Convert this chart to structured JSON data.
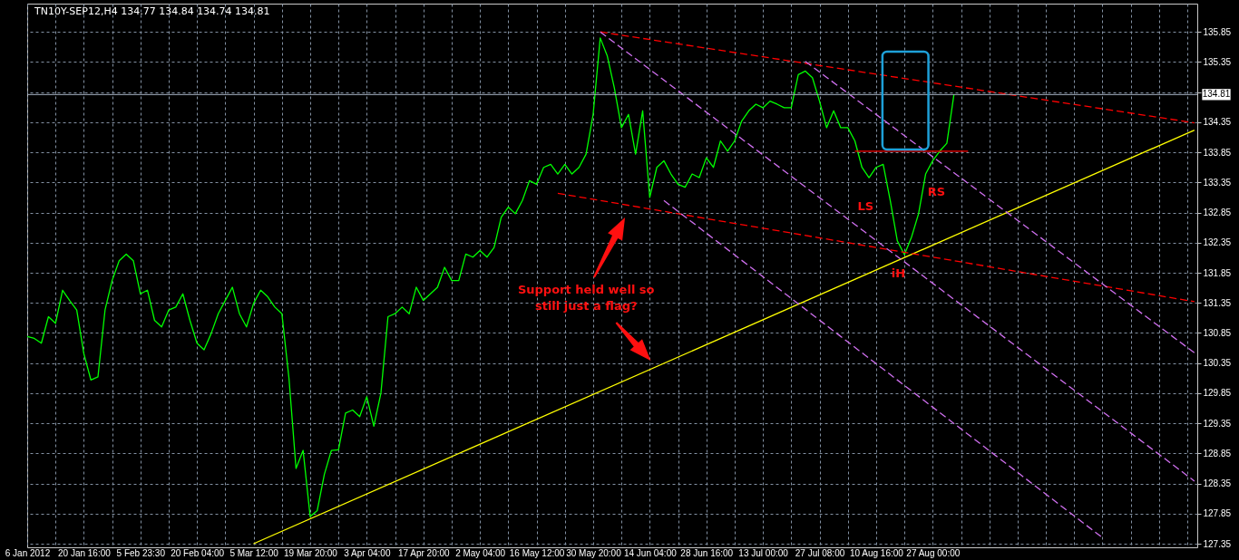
{
  "chart_data": {
    "type": "line",
    "title": "TN10Y-SEP12,H4  134.77 134.84 134.74 134.81",
    "categories": [
      "6 Jan 2012",
      null,
      null,
      null,
      null,
      null,
      null,
      null,
      "20 Jan 16:00",
      null,
      null,
      null,
      null,
      null,
      null,
      null,
      "5 Feb 23:30",
      null,
      null,
      null,
      null,
      null,
      null,
      null,
      "20 Feb 04:00",
      null,
      null,
      null,
      null,
      null,
      null,
      null,
      "5 Mar 12:00",
      null,
      null,
      null,
      null,
      null,
      null,
      null,
      "19 Mar 20:00",
      null,
      null,
      null,
      null,
      null,
      null,
      null,
      "3 Apr 04:00",
      null,
      null,
      null,
      null,
      null,
      null,
      null,
      "17 Apr 20:00",
      null,
      null,
      null,
      null,
      null,
      null,
      null,
      "2 May 04:00",
      null,
      null,
      null,
      null,
      null,
      null,
      null,
      "16 May 12:00",
      null,
      null,
      null,
      null,
      null,
      null,
      null,
      "30 May 20:00",
      null,
      null,
      null,
      null,
      null,
      null,
      null,
      "14 Jun 04:00",
      null,
      null,
      null,
      null,
      null,
      null,
      null,
      "28 Jun 16:00",
      null,
      null,
      null,
      null,
      null,
      null,
      null,
      "13 Jul 00:00",
      null,
      null,
      null,
      null,
      null,
      null,
      null,
      "27 Jul 08:00",
      null,
      null,
      null,
      null,
      null,
      null,
      null,
      "10 Aug 16:00",
      null,
      null,
      null,
      null,
      null,
      null,
      null,
      "27 Aug 00:00",
      null,
      null,
      null,
      null,
      null,
      null,
      null,
      null,
      null,
      null,
      null,
      null,
      null,
      null,
      null,
      null,
      null,
      null,
      null,
      null,
      null,
      null,
      null,
      null,
      null,
      null,
      null,
      null,
      null,
      null,
      null,
      null,
      null,
      null,
      null,
      null,
      null
    ],
    "series": [
      {
        "color": "#00ff00",
        "values": [
          130.79,
          130.76,
          130.68,
          131.12,
          131.01,
          131.56,
          131.39,
          131.23,
          130.51,
          130.07,
          130.12,
          131.23,
          131.72,
          132.05,
          132.16,
          132.05,
          131.5,
          131.56,
          131.06,
          130.95,
          131.23,
          131.28,
          131.5,
          131.06,
          130.68,
          130.57,
          130.84,
          131.17,
          131.39,
          131.61,
          131.17,
          130.95,
          131.34,
          131.56,
          131.45,
          131.28,
          131.17,
          130.1,
          128.6,
          128.9,
          127.8,
          127.9,
          128.5,
          128.9,
          128.91,
          129.52,
          129.57,
          129.46,
          129.79,
          129.3,
          129.85,
          131.12,
          131.17,
          131.28,
          131.17,
          131.61,
          131.39,
          131.5,
          131.61,
          131.94,
          131.72,
          131.72,
          132.16,
          132.11,
          132.22,
          132.11,
          132.27,
          132.77,
          132.94,
          132.83,
          133.05,
          133.38,
          133.32,
          133.6,
          133.65,
          133.49,
          133.65,
          133.49,
          133.6,
          133.82,
          134.48,
          135.75,
          135.45,
          134.92,
          134.26,
          134.48,
          133.82,
          134.54,
          133.1,
          133.6,
          133.71,
          133.49,
          133.32,
          133.27,
          133.49,
          133.43,
          133.76,
          133.6,
          134.04,
          133.87,
          134.04,
          134.37,
          134.54,
          134.65,
          134.59,
          134.7,
          134.65,
          134.59,
          134.59,
          135.14,
          135.2,
          135.09,
          134.7,
          134.26,
          134.54,
          134.26,
          134.26,
          134.04,
          133.6,
          133.43,
          133.6,
          133.65,
          133.05,
          132.38,
          132.15,
          132.44,
          132.83,
          133.49,
          133.71,
          133.87,
          134.0,
          134.81,
          null,
          null,
          null,
          null,
          null,
          null,
          null,
          null,
          null,
          null,
          null,
          null,
          null,
          null,
          null,
          null,
          null,
          null,
          null,
          null,
          null,
          null,
          null,
          null,
          null,
          null,
          null,
          null,
          null,
          null,
          null,
          null,
          null,
          null
        ]
      },
      {
        "color": "#ffff00",
        "line_style": "solid",
        "values": [
          null,
          null,
          null,
          null,
          null,
          null,
          null,
          null,
          null,
          null,
          null,
          null,
          null,
          null,
          null,
          null,
          null,
          null,
          null,
          null,
          null,
          null,
          null,
          null,
          null,
          null,
          null,
          null,
          null,
          null,
          null,
          null,
          127.35,
          null,
          null,
          null,
          null,
          null,
          null,
          null,
          null,
          null,
          null,
          null,
          null,
          null,
          null,
          null,
          null,
          null,
          null,
          null,
          null,
          null,
          null,
          null,
          null,
          null,
          null,
          null,
          null,
          null,
          null,
          null,
          null,
          null,
          null,
          null,
          null,
          null,
          null,
          null,
          null,
          null,
          null,
          null,
          null,
          null,
          null,
          null,
          null,
          null,
          null,
          null,
          null,
          null,
          null,
          null,
          null,
          null,
          null,
          null,
          null,
          null,
          null,
          null,
          null,
          null,
          null,
          null,
          null,
          null,
          null,
          null,
          null,
          null,
          null,
          null,
          null,
          null,
          null,
          null,
          null,
          null,
          null,
          null,
          null,
          null,
          null,
          null,
          null,
          null,
          null,
          null,
          null,
          null,
          null,
          null,
          null,
          null,
          null,
          null,
          null,
          null,
          null,
          null,
          null,
          null,
          null,
          null,
          null,
          null,
          null,
          null,
          null,
          null,
          null,
          null,
          null,
          null,
          null,
          null,
          null,
          null,
          null,
          null,
          null,
          null,
          null,
          null,
          null,
          null,
          null,
          null,
          null,
          134.22
        ]
      },
      {
        "color": "#ff0000",
        "line_style": "dashed",
        "values": [
          null,
          null,
          null,
          null,
          null,
          null,
          null,
          null,
          null,
          null,
          null,
          null,
          null,
          null,
          null,
          null,
          null,
          null,
          null,
          null,
          null,
          null,
          null,
          null,
          null,
          null,
          null,
          null,
          null,
          null,
          null,
          null,
          null,
          null,
          null,
          null,
          null,
          null,
          null,
          null,
          null,
          null,
          null,
          null,
          null,
          null,
          null,
          null,
          null,
          null,
          null,
          null,
          null,
          null,
          null,
          null,
          null,
          null,
          null,
          null,
          null,
          null,
          null,
          null,
          null,
          null,
          null,
          null,
          null,
          null,
          null,
          null,
          null,
          null,
          null,
          null,
          null,
          null,
          null,
          null,
          null,
          135.85,
          null,
          null,
          null,
          null,
          null,
          null,
          null,
          null,
          null,
          null,
          null,
          null,
          null,
          null,
          null,
          null,
          null,
          null,
          null,
          null,
          null,
          null,
          null,
          null,
          null,
          null,
          null,
          null,
          null,
          null,
          null,
          null,
          null,
          null,
          null,
          null,
          null,
          null,
          null,
          null,
          null,
          null,
          null,
          null,
          null,
          null,
          null,
          null,
          null,
          null,
          null,
          null,
          null,
          null,
          null,
          null,
          null,
          null,
          null,
          null,
          null,
          null,
          null,
          null,
          null,
          null,
          null,
          null,
          null,
          null,
          null,
          null,
          null,
          null,
          null,
          null,
          null,
          null,
          null,
          null,
          null,
          null,
          null,
          134.34
        ]
      },
      {
        "color": "#ff0000",
        "line_style": "dashed",
        "values": [
          null,
          null,
          null,
          null,
          null,
          null,
          null,
          null,
          null,
          null,
          null,
          null,
          null,
          null,
          null,
          null,
          null,
          null,
          null,
          null,
          null,
          null,
          null,
          null,
          null,
          null,
          null,
          null,
          null,
          null,
          null,
          null,
          null,
          null,
          null,
          null,
          null,
          null,
          null,
          null,
          null,
          null,
          null,
          null,
          null,
          null,
          null,
          null,
          null,
          null,
          null,
          null,
          null,
          null,
          null,
          null,
          null,
          null,
          null,
          null,
          null,
          null,
          null,
          null,
          null,
          null,
          null,
          null,
          null,
          null,
          null,
          null,
          null,
          null,
          null,
          133.17,
          null,
          null,
          null,
          null,
          null,
          null,
          null,
          null,
          null,
          null,
          null,
          null,
          null,
          null,
          null,
          null,
          null,
          null,
          null,
          null,
          null,
          null,
          null,
          null,
          null,
          null,
          null,
          null,
          null,
          null,
          null,
          null,
          null,
          null,
          null,
          null,
          null,
          null,
          null,
          null,
          null,
          null,
          null,
          null,
          null,
          null,
          null,
          null,
          null,
          null,
          null,
          null,
          null,
          null,
          null,
          null,
          null,
          null,
          null,
          null,
          null,
          null,
          null,
          null,
          null,
          null,
          null,
          null,
          null,
          null,
          null,
          null,
          null,
          null,
          null,
          null,
          null,
          null,
          null,
          null,
          null,
          null,
          null,
          null,
          null,
          null,
          null,
          null,
          null,
          131.37
        ]
      },
      {
        "color": "#ff0000",
        "line_style": "solid",
        "values": [
          null,
          null,
          null,
          null,
          null,
          null,
          null,
          null,
          null,
          null,
          null,
          null,
          null,
          null,
          null,
          null,
          null,
          null,
          null,
          null,
          null,
          null,
          null,
          null,
          null,
          null,
          null,
          null,
          null,
          null,
          null,
          null,
          null,
          null,
          null,
          null,
          null,
          null,
          null,
          null,
          null,
          null,
          null,
          null,
          null,
          null,
          null,
          null,
          null,
          null,
          null,
          null,
          null,
          null,
          null,
          null,
          null,
          null,
          null,
          null,
          null,
          null,
          null,
          null,
          null,
          null,
          null,
          null,
          null,
          null,
          null,
          null,
          null,
          null,
          null,
          null,
          null,
          null,
          null,
          null,
          null,
          null,
          null,
          null,
          null,
          null,
          null,
          null,
          null,
          null,
          null,
          null,
          null,
          null,
          null,
          null,
          null,
          null,
          null,
          null,
          null,
          null,
          null,
          null,
          null,
          null,
          null,
          null,
          null,
          null,
          null,
          null,
          null,
          null,
          null,
          null,
          null,
          133.87,
          null,
          null,
          null,
          null,
          null,
          null,
          null,
          null,
          null,
          null,
          null,
          null,
          null,
          null,
          null,
          133.87,
          null,
          null,
          null,
          null,
          null,
          null,
          null,
          null,
          null,
          null,
          null,
          null,
          null,
          null,
          null,
          null,
          null,
          null,
          null,
          null,
          null,
          null,
          null,
          null,
          null,
          null,
          null,
          null,
          null,
          null,
          null,
          null
        ]
      },
      {
        "color": "#d070f0",
        "line_style": "dashed",
        "values": [
          null,
          null,
          null,
          null,
          null,
          null,
          null,
          null,
          null,
          null,
          null,
          null,
          null,
          null,
          null,
          null,
          null,
          null,
          null,
          null,
          null,
          null,
          null,
          null,
          null,
          null,
          null,
          null,
          null,
          null,
          null,
          null,
          null,
          null,
          null,
          null,
          null,
          null,
          null,
          null,
          null,
          null,
          null,
          null,
          null,
          null,
          null,
          null,
          null,
          null,
          null,
          null,
          null,
          null,
          null,
          null,
          null,
          null,
          null,
          null,
          null,
          null,
          null,
          null,
          null,
          null,
          null,
          null,
          null,
          null,
          null,
          null,
          null,
          null,
          null,
          null,
          null,
          null,
          null,
          null,
          null,
          135.85,
          null,
          null,
          null,
          null,
          null,
          null,
          null,
          null,
          null,
          null,
          null,
          null,
          null,
          null,
          null,
          null,
          null,
          null,
          null,
          null,
          null,
          null,
          null,
          null,
          null,
          null,
          null,
          null,
          null,
          null,
          null,
          null,
          null,
          null,
          null,
          null,
          null,
          null,
          null,
          null,
          null,
          null,
          null,
          null,
          null,
          null,
          null,
          null,
          null,
          null,
          null,
          null,
          null,
          null,
          null,
          null,
          null,
          null,
          null,
          null,
          null,
          null,
          null,
          null,
          null,
          null,
          null,
          null,
          null,
          null,
          null,
          null,
          null,
          null,
          null,
          null,
          null,
          null,
          null,
          null,
          null,
          null,
          null,
          128.39
        ]
      },
      {
        "color": "#d070f0",
        "line_style": "dashed",
        "values": [
          null,
          null,
          null,
          null,
          null,
          null,
          null,
          null,
          null,
          null,
          null,
          null,
          null,
          null,
          null,
          null,
          null,
          null,
          null,
          null,
          null,
          null,
          null,
          null,
          null,
          null,
          null,
          null,
          null,
          null,
          null,
          null,
          null,
          null,
          null,
          null,
          null,
          null,
          null,
          null,
          null,
          null,
          null,
          null,
          null,
          null,
          null,
          null,
          null,
          null,
          null,
          null,
          null,
          null,
          null,
          null,
          null,
          null,
          null,
          null,
          null,
          null,
          null,
          null,
          null,
          null,
          null,
          null,
          null,
          null,
          null,
          null,
          null,
          null,
          null,
          null,
          null,
          null,
          null,
          null,
          null,
          null,
          null,
          null,
          null,
          null,
          null,
          null,
          null,
          null,
          null,
          null,
          null,
          null,
          null,
          null,
          null,
          null,
          null,
          null,
          null,
          null,
          null,
          null,
          null,
          null,
          null,
          null,
          null,
          null,
          135.36,
          null,
          null,
          null,
          null,
          null,
          null,
          null,
          null,
          null,
          null,
          null,
          null,
          null,
          null,
          null,
          null,
          null,
          null,
          null,
          null,
          null,
          null,
          null,
          null,
          null,
          null,
          null,
          null,
          null,
          null,
          null,
          null,
          null,
          null,
          null,
          null,
          null,
          null,
          null,
          null,
          null,
          null,
          null,
          null,
          null,
          null,
          null,
          null,
          null,
          null,
          null,
          null,
          null,
          null,
          130.52
        ]
      },
      {
        "color": "#d070f0",
        "line_style": "dashed",
        "values": [
          null,
          null,
          null,
          null,
          null,
          null,
          null,
          null,
          null,
          null,
          null,
          null,
          null,
          null,
          null,
          null,
          null,
          null,
          null,
          null,
          null,
          null,
          null,
          null,
          null,
          null,
          null,
          null,
          null,
          null,
          null,
          null,
          null,
          null,
          null,
          null,
          null,
          null,
          null,
          null,
          null,
          null,
          null,
          null,
          null,
          null,
          null,
          null,
          null,
          null,
          null,
          null,
          null,
          null,
          null,
          null,
          null,
          null,
          null,
          null,
          null,
          null,
          null,
          null,
          null,
          null,
          null,
          null,
          null,
          null,
          null,
          null,
          null,
          null,
          null,
          null,
          null,
          null,
          null,
          null,
          null,
          null,
          null,
          null,
          null,
          null,
          null,
          null,
          null,
          null,
          133.05,
          null,
          null,
          null,
          null,
          null,
          null,
          null,
          null,
          null,
          null,
          null,
          null,
          null,
          null,
          null,
          null,
          null,
          null,
          null,
          null,
          null,
          null,
          null,
          null,
          null,
          null,
          null,
          null,
          null,
          null,
          null,
          null,
          null,
          null,
          null,
          null,
          null,
          null,
          null,
          null,
          null,
          null,
          null,
          null,
          null,
          null,
          null,
          null,
          null,
          null,
          null,
          null,
          null,
          null,
          null,
          null,
          null,
          null,
          null,
          null,
          null,
          127.45,
          null,
          null,
          null,
          null,
          null,
          null,
          null,
          null,
          null,
          null,
          null,
          null,
          null
        ]
      }
    ],
    "ylim": [
      127.29,
      136.32
    ],
    "yticks": [
      127.35,
      127.85,
      128.35,
      128.85,
      129.35,
      129.85,
      130.35,
      130.85,
      131.35,
      131.85,
      132.35,
      132.85,
      133.35,
      133.85,
      134.35,
      {
        "value": 134.85,
        "label": null
      },
      135.35,
      135.85
    ],
    "grid": true,
    "ref_lines": [
      {
        "axis": "y",
        "value": 134.81,
        "label": "134.81",
        "color": "#a8b4c4"
      }
    ],
    "annotations": [
      "Support held well so\nstill just a flag?",
      "LS",
      "RS",
      "iH"
    ]
  }
}
